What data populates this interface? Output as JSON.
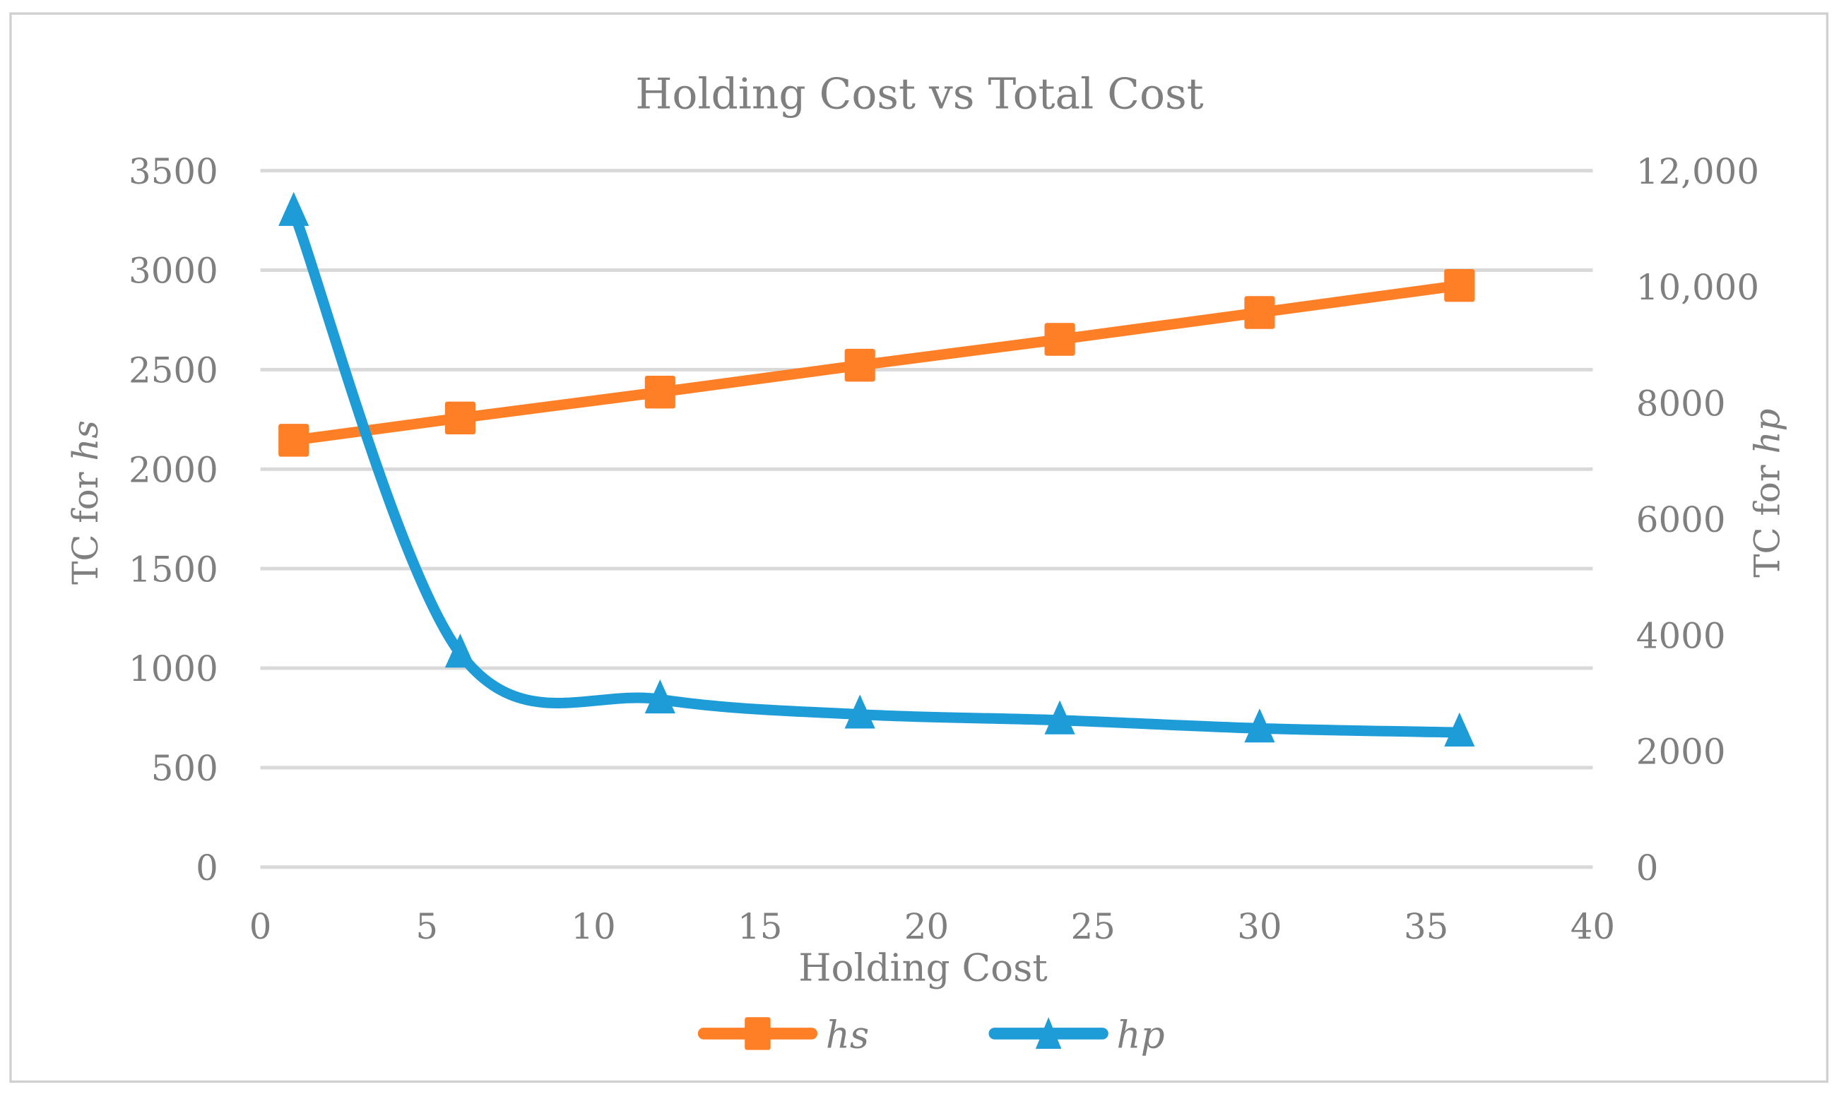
{
  "chart_data": {
    "type": "line",
    "title": "Holding Cost vs Total Cost",
    "xlabel": "Holding Cost",
    "ylabel_left": {
      "prefix": "TC for ",
      "italic": "hs"
    },
    "ylabel_right": {
      "prefix": "TC for ",
      "italic": "hp"
    },
    "xlim": [
      0,
      40
    ],
    "ylim_left": [
      0,
      3500
    ],
    "ylim_right": [
      0,
      12000
    ],
    "x_ticks": [
      "0",
      "5",
      "10",
      "15",
      "20",
      "25",
      "30",
      "35",
      "40"
    ],
    "y_left_ticks": [
      "0",
      "500",
      "1000",
      "1500",
      "2000",
      "2500",
      "3000",
      "3500"
    ],
    "y_right_ticks": [
      "0",
      "2000",
      "4000",
      "6000",
      "8000",
      "10,000",
      "12,000"
    ],
    "grid": true,
    "legend_position": "bottom",
    "x": [
      1,
      6,
      12,
      18,
      24,
      30,
      36
    ],
    "series": [
      {
        "name": "hs",
        "axis": "left",
        "color": "#FF7F27",
        "marker": "square",
        "smooth": false,
        "values": [
          2145,
          2257,
          2387,
          2522,
          2652,
          2787,
          2923
        ]
      },
      {
        "name": "hp",
        "axis": "right",
        "color": "#1E9CD7",
        "marker": "triangle",
        "smooth": true,
        "values": [
          11290,
          3680,
          2890,
          2630,
          2530,
          2390,
          2320
        ]
      }
    ]
  }
}
